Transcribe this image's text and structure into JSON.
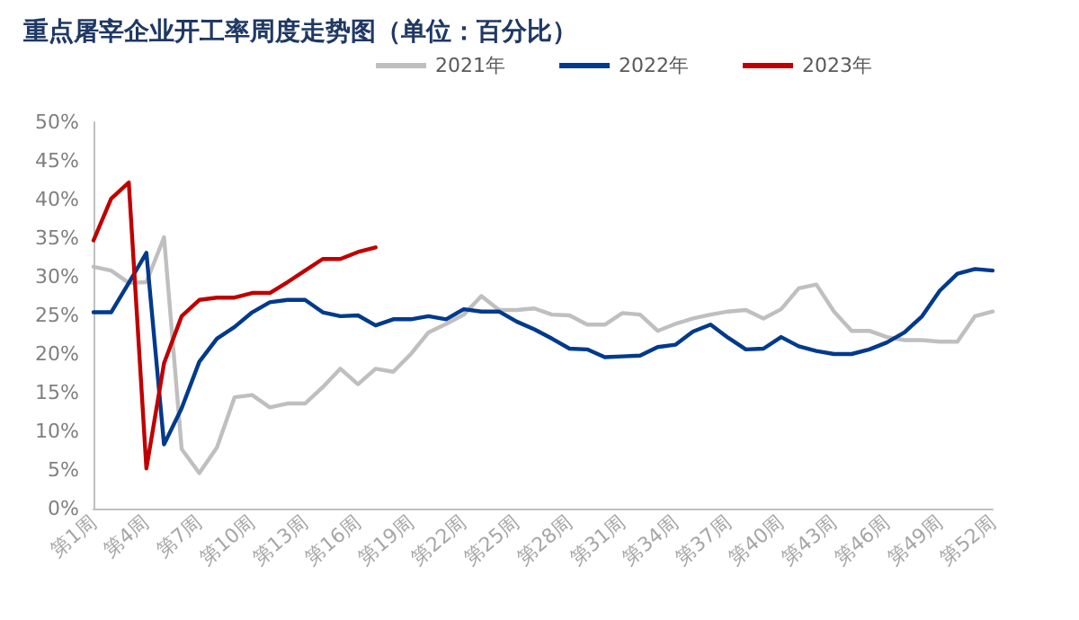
{
  "chart_data": {
    "type": "line",
    "title": "重点屠宰企业开工率周度走势图（单位：百分比）",
    "categories": [
      "第1周",
      null,
      null,
      "第4周",
      null,
      null,
      "第7周",
      null,
      null,
      "第10周",
      null,
      null,
      "第13周",
      null,
      null,
      "第16周",
      null,
      null,
      "第19周",
      null,
      null,
      "第22周",
      null,
      null,
      "第25周",
      null,
      null,
      "第28周",
      null,
      null,
      "第31周",
      null,
      null,
      "第34周",
      null,
      null,
      "第37周",
      null,
      null,
      "第40周",
      null,
      null,
      "第43周",
      null,
      null,
      "第46周",
      null,
      null,
      "第49周",
      null,
      null,
      "第52周"
    ],
    "series": [
      {
        "name": "2021年",
        "color": "#bfbfbf",
        "values": [
          31.3,
          30.8,
          29.2,
          29.3,
          35.1,
          7.7,
          4.6,
          7.9,
          14.4,
          14.7,
          13.1,
          13.6,
          13.6,
          15.7,
          18.1,
          16.1,
          18.1,
          17.7,
          20.0,
          22.8,
          23.9,
          25.1,
          27.5,
          25.7,
          25.7,
          25.9,
          25.1,
          25.0,
          23.8,
          23.8,
          25.3,
          25.1,
          23.0,
          23.9,
          24.6,
          25.1,
          25.5,
          25.7,
          24.6,
          25.8,
          28.5,
          29.0,
          25.5,
          23.0,
          23.0,
          22.2,
          21.8,
          21.8,
          21.6,
          21.6,
          24.9,
          25.5
        ]
      },
      {
        "name": "2022年",
        "color": "#003a8c",
        "values": [
          25.4,
          25.4,
          29.2,
          33.1,
          8.3,
          13.0,
          19.0,
          22.0,
          23.5,
          25.4,
          26.7,
          27.0,
          27.0,
          25.4,
          24.9,
          25.0,
          23.7,
          24.5,
          24.5,
          24.9,
          24.5,
          25.8,
          25.5,
          25.5,
          24.2,
          23.2,
          22.0,
          20.7,
          20.6,
          19.6,
          19.7,
          19.8,
          20.9,
          21.2,
          22.9,
          23.8,
          22.1,
          20.6,
          20.7,
          22.2,
          21.0,
          20.4,
          20.0,
          20.0,
          20.6,
          21.5,
          22.8,
          24.9,
          28.2,
          30.4,
          31.0,
          30.8
        ]
      },
      {
        "name": "2023年",
        "color": "#c00000",
        "values": [
          34.7,
          40.1,
          42.2,
          5.2,
          18.8,
          24.9,
          27.0,
          27.3,
          27.3,
          27.9,
          27.9,
          29.3,
          30.8,
          32.3,
          32.3,
          33.2,
          33.8,
          null,
          null,
          null,
          null,
          null,
          null,
          null,
          null,
          null,
          null,
          null,
          null,
          null,
          null,
          null,
          null,
          null,
          null,
          null,
          null,
          null,
          null,
          null,
          null,
          null,
          null,
          null,
          null,
          null,
          null,
          null,
          null,
          null,
          null,
          null
        ]
      }
    ],
    "ylim": [
      0,
      50
    ],
    "yticks": [
      {
        "value": 0,
        "label": "0%"
      },
      {
        "value": 5,
        "label": "5%"
      },
      {
        "value": 10,
        "label": "10%"
      },
      {
        "value": 15,
        "label": "15%"
      },
      {
        "value": 20,
        "label": "20%"
      },
      {
        "value": 25,
        "label": "25%"
      },
      {
        "value": 30,
        "label": "30%"
      },
      {
        "value": 35,
        "label": "35%"
      },
      {
        "value": 40,
        "label": "40%"
      },
      {
        "value": 45,
        "label": "45%"
      },
      {
        "value": 50,
        "label": "50%"
      }
    ],
    "grid": false,
    "legend": "top right",
    "marker": "none",
    "line_style": "solid"
  }
}
